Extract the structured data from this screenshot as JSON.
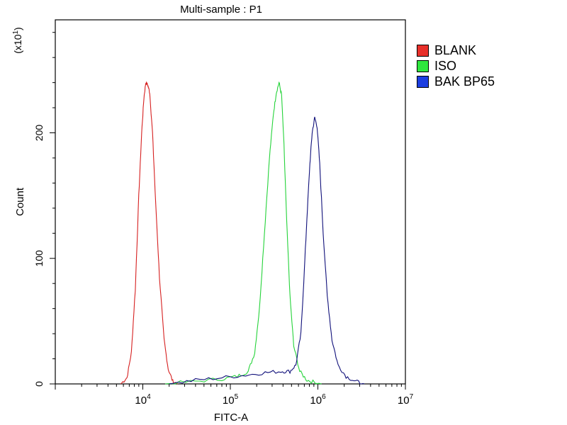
{
  "chart_data": {
    "type": "line",
    "title": "Multi-sample : P1",
    "xlabel": "FITC-A",
    "ylabel": "Count",
    "y_multiplier_label": "(x10^1)",
    "x_scale": "log",
    "xlim": [
      1000,
      10000000
    ],
    "ylim": [
      0,
      290
    ],
    "x_ticks": [
      {
        "value": 10000,
        "base": "10",
        "exp": "4"
      },
      {
        "value": 100000,
        "base": "10",
        "exp": "5"
      },
      {
        "value": 1000000,
        "base": "10",
        "exp": "6"
      },
      {
        "value": 10000000,
        "base": "10",
        "exp": "7"
      }
    ],
    "y_ticks": [
      {
        "value": 0,
        "label": "0"
      },
      {
        "value": 100,
        "label": "100"
      },
      {
        "value": 200,
        "label": "200"
      }
    ],
    "grid": false,
    "legend_position": "top-right",
    "series": [
      {
        "name": "BLANK",
        "color": "#d62020",
        "swatch": "#e8302a",
        "points": [
          [
            5600,
            0
          ],
          [
            6600,
            5
          ],
          [
            7400,
            25
          ],
          [
            8200,
            75
          ],
          [
            9000,
            150
          ],
          [
            9700,
            200
          ],
          [
            10300,
            228
          ],
          [
            10800,
            240
          ],
          [
            11400,
            238
          ],
          [
            12000,
            232
          ],
          [
            12900,
            200
          ],
          [
            14000,
            145
          ],
          [
            15500,
            85
          ],
          [
            17500,
            35
          ],
          [
            19500,
            12
          ],
          [
            22000,
            2
          ],
          [
            25000,
            0
          ]
        ]
      },
      {
        "name": "ISO",
        "color": "#25d33a",
        "swatch": "#2ee63d",
        "points": [
          [
            18000,
            0
          ],
          [
            40000,
            2
          ],
          [
            80000,
            4
          ],
          [
            120000,
            6
          ],
          [
            160000,
            10
          ],
          [
            190000,
            25
          ],
          [
            215000,
            60
          ],
          [
            245000,
            120
          ],
          [
            280000,
            180
          ],
          [
            310000,
            215
          ],
          [
            335000,
            232
          ],
          [
            360000,
            240
          ],
          [
            385000,
            230
          ],
          [
            410000,
            190
          ],
          [
            440000,
            130
          ],
          [
            480000,
            70
          ],
          [
            530000,
            30
          ],
          [
            620000,
            10
          ],
          [
            750000,
            3
          ],
          [
            950000,
            1
          ],
          [
            1100000,
            0
          ]
        ]
      },
      {
        "name": "BAK BP65",
        "color": "#10107a",
        "swatch": "#1c3ee0",
        "points": [
          [
            20000,
            0
          ],
          [
            40000,
            3
          ],
          [
            80000,
            5
          ],
          [
            150000,
            7
          ],
          [
            250000,
            9
          ],
          [
            380000,
            10
          ],
          [
            480000,
            10
          ],
          [
            560000,
            15
          ],
          [
            640000,
            40
          ],
          [
            700000,
            90
          ],
          [
            760000,
            140
          ],
          [
            810000,
            175
          ],
          [
            860000,
            200
          ],
          [
            920000,
            212
          ],
          [
            980000,
            205
          ],
          [
            1050000,
            175
          ],
          [
            1150000,
            120
          ],
          [
            1280000,
            70
          ],
          [
            1450000,
            35
          ],
          [
            1700000,
            15
          ],
          [
            2100000,
            6
          ],
          [
            2700000,
            2
          ],
          [
            3400000,
            0
          ]
        ]
      }
    ]
  }
}
